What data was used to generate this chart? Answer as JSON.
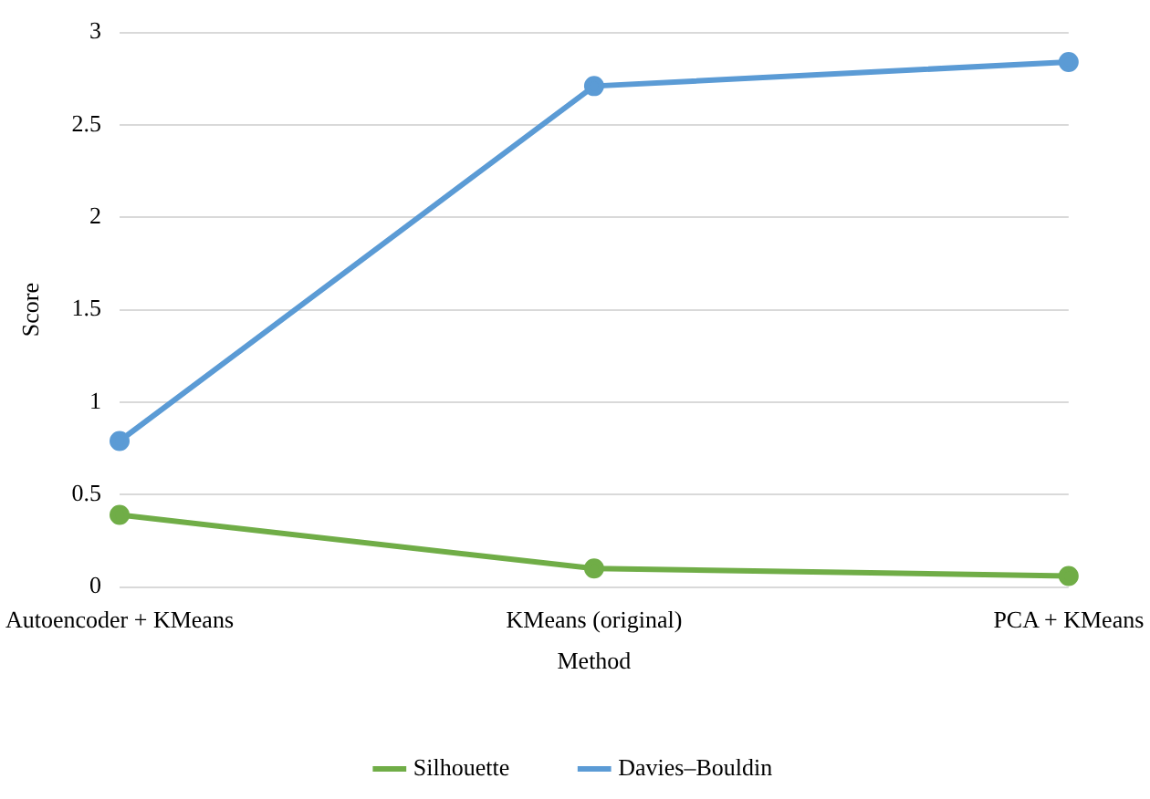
{
  "chart_data": {
    "type": "line",
    "xlabel": "Method",
    "ylabel": "Score",
    "categories": [
      "Autoencoder + KMeans",
      "KMeans (original)",
      "PCA + KMeans"
    ],
    "series": [
      {
        "name": "Silhouette",
        "color": "#70ad47",
        "values": [
          0.39,
          0.1,
          0.06
        ]
      },
      {
        "name": "Davies–Bouldin",
        "color": "#5b9bd5",
        "values": [
          0.79,
          2.71,
          2.84
        ]
      }
    ],
    "ylim": [
      0,
      3
    ],
    "yticks": [
      0,
      0.5,
      1,
      1.5,
      2,
      2.5,
      3
    ],
    "grid": "y",
    "legend": "bottom",
    "marker": "circle",
    "line_style": "solid"
  }
}
